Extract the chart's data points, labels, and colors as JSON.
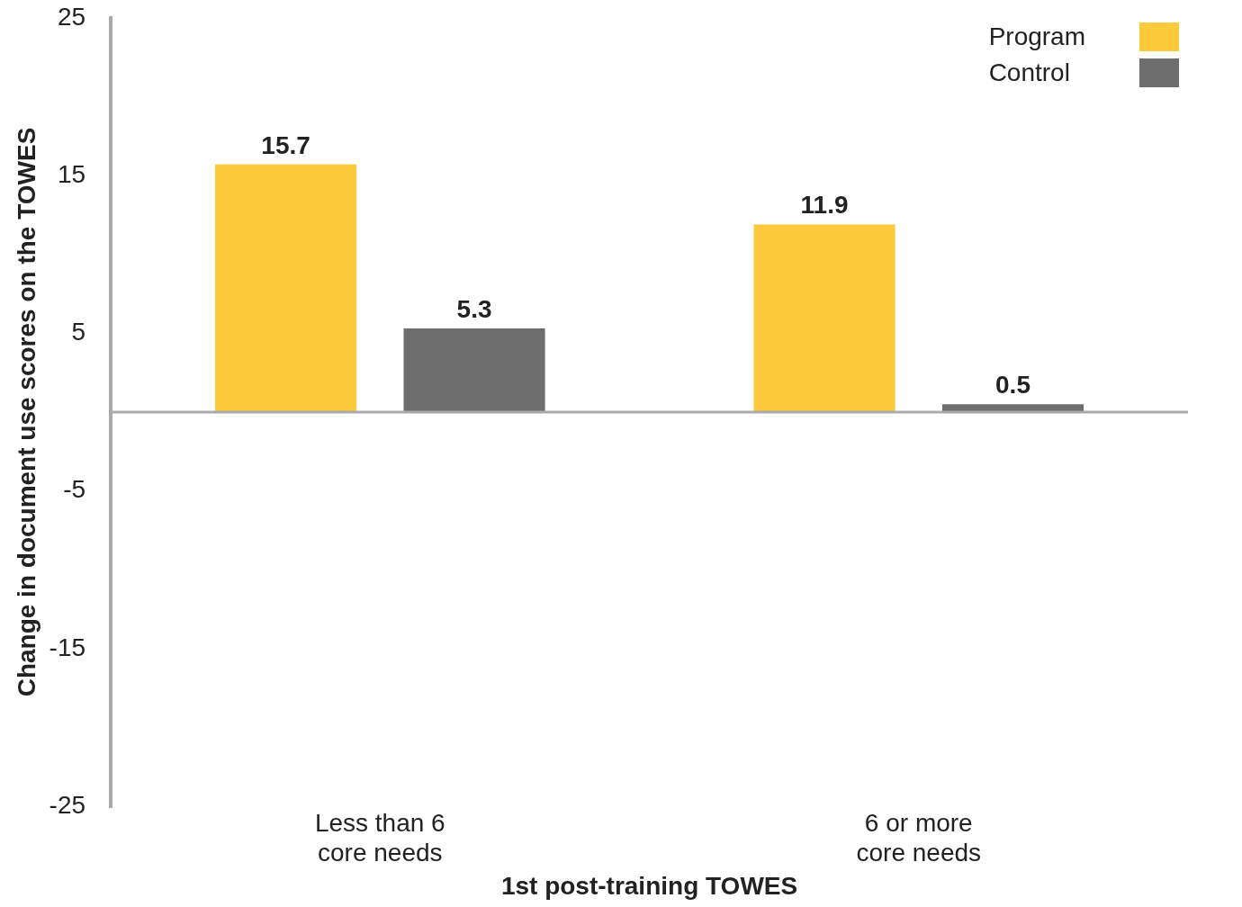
{
  "chart_data": {
    "type": "bar",
    "xlabel": "1st post-training TOWES",
    "ylabel": "Change in document use scores on the TOWES",
    "categories": [
      "Less than 6 core needs",
      "6 or more core needs"
    ],
    "series": [
      {
        "name": "Program",
        "color": "#fcc93a",
        "values": [
          15.7,
          11.9
        ]
      },
      {
        "name": "Control",
        "color": "#6e6e6e",
        "values": [
          5.3,
          0.5
        ]
      }
    ],
    "ylim": [
      -25,
      25
    ],
    "yticks": [
      -25,
      -15,
      -5,
      5,
      15,
      25
    ],
    "grid": false,
    "legend": "top right",
    "data_labels": true
  }
}
